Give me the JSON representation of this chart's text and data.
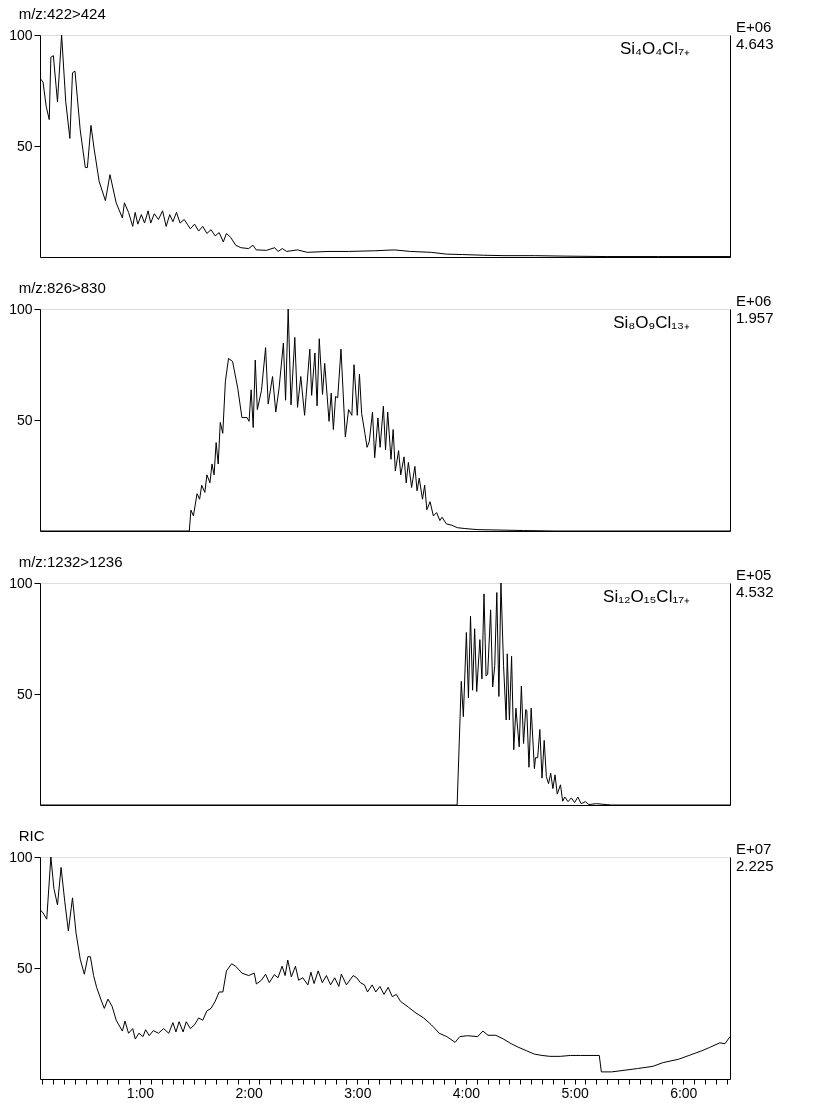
{
  "chart_data": [
    {
      "type": "line",
      "title": "m/z:422>424",
      "annotations": [
        "Si₄O₄Cl₇₊",
        "E+06",
        "4.643"
      ],
      "series": [
        {
          "color": "#000000",
          "x": [
            0.08,
            0.108,
            0.137,
            0.165,
            0.18,
            0.203,
            0.241,
            0.279,
            0.317,
            0.355,
            0.379,
            0.402,
            0.45,
            0.497,
            0.516,
            0.549,
            0.578,
            0.625,
            0.682,
            0.724,
            0.781,
            0.838,
            0.857,
            0.895,
            0.933,
            0.956,
            0.98,
            1.013,
            1.042,
            1.075,
            1.099,
            1.132,
            1.17,
            1.208,
            1.241,
            1.274,
            1.303,
            1.336,
            1.369,
            1.407,
            1.435,
            1.464,
            1.502,
            1.54,
            1.578,
            1.616,
            1.654,
            1.692,
            1.729,
            1.767,
            1.796,
            1.834,
            1.881,
            1.928,
            2.0,
            2.04,
            2.07,
            2.165,
            2.24,
            2.27,
            2.31,
            2.35,
            2.45,
            2.54,
            2.73,
            2.92,
            3.16,
            3.34,
            3.49,
            3.68,
            3.82,
            3.97,
            4.16,
            4.35,
            4.63,
            4.91,
            5.29,
            5.77,
            6.43
          ],
          "values": [
            80.5,
            78.8,
            67.8,
            61.9,
            90,
            90.7,
            69.9,
            100,
            69.9,
            53.4,
            83,
            83.7,
            57.2,
            40.3,
            40.3,
            59.3,
            48.7,
            33.9,
            25.4,
            37.1,
            24.4,
            17.6,
            24.4,
            20.1,
            13.8,
            20.1,
            14.8,
            19.1,
            15.3,
            20.8,
            15.3,
            19.5,
            16.9,
            20.8,
            13.8,
            19.1,
            15.9,
            20.1,
            15.3,
            16.9,
            14.8,
            12.7,
            14.8,
            11.7,
            13.8,
            10.6,
            12.3,
            9.5,
            11,
            6.8,
            10.6,
            8.9,
            5.3,
            4.2,
            3.8,
            5.3,
            3.2,
            3,
            4.2,
            2.5,
            3.8,
            2.5,
            3.2,
            2.1,
            2.5,
            2.5,
            2.8,
            3.2,
            2.5,
            2.1,
            1.3,
            1.1,
            0.8,
            0.6,
            0.6,
            0.4,
            0.2,
            0.2,
            0.2
          ]
        }
      ],
      "xlim": [
        0.08,
        6.43
      ],
      "ylim": [
        0,
        100
      ],
      "yticks": [
        50,
        100
      ],
      "tick_labels": "y"
    },
    {
      "type": "line",
      "title": "m/z:826>830",
      "annotations": [
        "Si₈O₉Cl₁₃₊",
        "E+06",
        "1.957"
      ],
      "series": [
        {
          "color": "#000000",
          "x": [
            0.08,
            1.454,
            1.469,
            1.492,
            1.525,
            1.549,
            1.568,
            1.597,
            1.616,
            1.644,
            1.663,
            1.682,
            1.701,
            1.72,
            1.739,
            1.762,
            1.786,
            1.815,
            1.852,
            1.9,
            1.938,
            1.985,
            2.004,
            2.023,
            2.042,
            2.061,
            2.08,
            2.118,
            2.156,
            2.18,
            2.22,
            2.25,
            2.28,
            2.32,
            2.34,
            2.364,
            2.39,
            2.425,
            2.45,
            2.48,
            2.515,
            2.563,
            2.58,
            2.61,
            2.63,
            2.65,
            2.68,
            2.7,
            2.74,
            2.76,
            2.78,
            2.8,
            2.82,
            2.85,
            2.89,
            2.92,
            2.95,
            2.97,
            3.0,
            3.02,
            3.04,
            3.07,
            3.09,
            3.11,
            3.14,
            3.16,
            3.19,
            3.21,
            3.24,
            3.26,
            3.28,
            3.31,
            3.33,
            3.35,
            3.38,
            3.4,
            3.43,
            3.45,
            3.47,
            3.5,
            3.53,
            3.55,
            3.57,
            3.6,
            3.62,
            3.64,
            3.67,
            3.7,
            3.73,
            3.76,
            3.78,
            3.82,
            3.87,
            3.92,
            3.99,
            4.11,
            4.35,
            4.53,
            4.82,
            6.43
          ],
          "values": [
            0,
            0,
            9.4,
            6.8,
            16.8,
            14.3,
            20.6,
            17.4,
            25.3,
            21.7,
            30.2,
            25.3,
            39.8,
            30.2,
            48.9,
            44,
            67.4,
            77.7,
            76.4,
            64.3,
            51.1,
            51.1,
            49.4,
            63.6,
            46.6,
            77,
            54.7,
            63.2,
            82.6,
            57.2,
            69.6,
            53.6,
            64.3,
            84.7,
            58.9,
            100,
            56.8,
            87.2,
            55.7,
            69.6,
            52.1,
            81.9,
            61.1,
            80.2,
            56.4,
            86.6,
            61.5,
            75.5,
            49.4,
            62.1,
            45.7,
            60.6,
            60,
            81.9,
            42.3,
            54.7,
            52.1,
            74.9,
            52.1,
            70.6,
            53,
            44,
            37.7,
            40.2,
            53.6,
            33,
            50.9,
            37.7,
            56.2,
            36.6,
            53.6,
            32.3,
            45.7,
            27,
            36.2,
            25.3,
            33.4,
            21.7,
            30.9,
            19.6,
            29.1,
            18.1,
            23.8,
            14.3,
            20.6,
            9.6,
            13.2,
            6.8,
            8.3,
            4.7,
            6.2,
            3.2,
            2.6,
            1.5,
            1.1,
            0.6,
            0.4,
            0.2,
            0,
            0
          ]
        }
      ],
      "xlim": [
        0.08,
        6.43
      ],
      "ylim": [
        0,
        100
      ],
      "yticks": [
        50,
        100
      ],
      "tick_labels": "y"
    },
    {
      "type": "line",
      "title": "m/z:1232>1236",
      "annotations": [
        "Si₁₂O₁₅Cl₁₇₊",
        "E+05",
        "4.532"
      ],
      "series": [
        {
          "color": "#000000",
          "x": [
            0.08,
            3.919,
            3.957,
            3.976,
            4.004,
            4.023,
            4.042,
            4.061,
            4.08,
            4.099,
            4.128,
            4.147,
            4.166,
            4.185,
            4.2,
            4.227,
            4.246,
            4.265,
            4.284,
            4.303,
            4.322,
            4.346,
            4.37,
            4.38,
            4.4,
            4.42,
            4.44,
            4.46,
            4.49,
            4.51,
            4.53,
            4.55,
            4.56,
            4.58,
            4.6,
            4.63,
            4.64,
            4.66,
            4.68,
            4.7,
            4.72,
            4.74,
            4.76,
            4.78,
            4.8,
            4.82,
            4.84,
            4.87,
            4.89,
            4.91,
            4.94,
            4.97,
            5.0,
            5.03,
            5.06,
            5.1,
            5.13,
            5.2,
            5.29,
            5.34,
            6.43
          ],
          "values": [
            0,
            0,
            55.7,
            39.8,
            77.7,
            48.3,
            85.1,
            51.7,
            79.4,
            51.1,
            74.5,
            56.8,
            95.1,
            58.1,
            58.9,
            87.9,
            53.2,
            62.8,
            95.7,
            48.9,
            100,
            62.8,
            38.3,
            68.1,
            38.3,
            67,
            24.9,
            43.6,
            26.2,
            53.6,
            27.7,
            43,
            42.6,
            17,
            43.6,
            16.4,
            21.3,
            21.3,
            34,
            12.1,
            29.1,
            12.8,
            9.6,
            14.3,
            7.4,
            13.6,
            4.9,
            9.1,
            1.7,
            3.6,
            1.5,
            3.2,
            1.1,
            3.6,
            0.6,
            1.5,
            0.2,
            0.6,
            0.2,
            0,
            0
          ]
        }
      ],
      "xlim": [
        0.08,
        6.43
      ],
      "ylim": [
        0,
        100
      ],
      "yticks": [
        50,
        100
      ],
      "tick_labels": "y"
    },
    {
      "type": "line",
      "title": "RIC",
      "annotations": [
        "E+07",
        "2.225"
      ],
      "series": [
        {
          "color": "#000000",
          "x": [
            0.08,
            0.108,
            0.142,
            0.18,
            0.208,
            0.241,
            0.274,
            0.308,
            0.341,
            0.379,
            0.412,
            0.45,
            0.488,
            0.521,
            0.544,
            0.573,
            0.601,
            0.639,
            0.672,
            0.705,
            0.743,
            0.781,
            0.838,
            0.862,
            0.895,
            0.933,
            0.957,
            0.99,
            1.028,
            1.052,
            1.085,
            1.123,
            1.17,
            1.217,
            1.265,
            1.303,
            1.331,
            1.36,
            1.397,
            1.426,
            1.464,
            1.502,
            1.54,
            1.578,
            1.616,
            1.654,
            1.692,
            1.729,
            1.763,
            1.796,
            1.843,
            1.881,
            1.938,
            2.0,
            2.052,
            2.071,
            2.118,
            2.156,
            2.19,
            2.237,
            2.27,
            2.308,
            2.336,
            2.36,
            2.393,
            2.431,
            2.46,
            2.498,
            2.545,
            2.573,
            2.602,
            2.64,
            2.678,
            2.716,
            2.754,
            2.792,
            2.83,
            2.853,
            2.9,
            2.962,
            2.995,
            3.028,
            3.066,
            3.094,
            3.137,
            3.17,
            3.208,
            3.246,
            3.284,
            3.322,
            3.359,
            3.397,
            3.469,
            3.54,
            3.611,
            3.682,
            3.754,
            3.824,
            3.9,
            3.943,
            4.013,
            4.108,
            4.156,
            4.203,
            4.274,
            4.345,
            4.416,
            4.487,
            4.559,
            4.63,
            4.701,
            4.772,
            4.867,
            4.962,
            5.056,
            5.151,
            5.227,
            5.246,
            5.34,
            5.436,
            5.578,
            5.72,
            5.815,
            5.957,
            6.052,
            6.17,
            6.242,
            6.336,
            6.384,
            6.43
          ],
          "values": [
            76.3,
            74.8,
            72,
            100,
            85.8,
            78.4,
            95.3,
            79.9,
            66.7,
            81.6,
            65.7,
            54,
            47.2,
            55.1,
            55.1,
            46.6,
            41.3,
            36,
            31.8,
            36,
            32.8,
            26.5,
            21.6,
            26.1,
            20.6,
            22.7,
            18,
            20.6,
            19.1,
            22.2,
            19.5,
            21.8,
            20.6,
            22.7,
            20.6,
            25.4,
            21.2,
            25.8,
            21.2,
            25.8,
            22.7,
            24.4,
            27.5,
            26.5,
            30.7,
            31.8,
            35,
            39.2,
            39.2,
            48.7,
            51.9,
            50.8,
            47.7,
            46.6,
            47.7,
            42.8,
            44.5,
            47.2,
            43.4,
            47,
            45.6,
            50.8,
            46.6,
            53.6,
            46,
            50.8,
            44.5,
            45.6,
            42.4,
            48.1,
            43,
            48.7,
            43.4,
            46.6,
            42.4,
            45.6,
            41.7,
            47.2,
            42.4,
            46.6,
            45.6,
            43.4,
            42.4,
            39.2,
            42.4,
            39.2,
            41.7,
            38.1,
            41.3,
            37.1,
            38.1,
            35,
            32.4,
            29.7,
            27.5,
            24.4,
            20.6,
            19.1,
            16.5,
            19.1,
            19.5,
            19.1,
            21.6,
            19.7,
            19.7,
            18,
            15.9,
            14.2,
            12.7,
            11.2,
            10.6,
            10.2,
            10.2,
            10.6,
            10.6,
            10.6,
            10.6,
            3.2,
            3.2,
            3.8,
            4.7,
            5.7,
            7.4,
            8.9,
            10.6,
            12.7,
            14.2,
            16.3,
            15.9,
            19.1
          ]
        }
      ],
      "xlim": [
        0.08,
        6.43
      ],
      "ylim": [
        0,
        100
      ],
      "yticks": [
        50,
        100
      ],
      "xticks": [
        {
          "value": 0.1,
          "label": null
        },
        {
          "value": 0.2,
          "label": null
        },
        {
          "value": 0.3,
          "label": null
        },
        {
          "value": 0.4,
          "label": null
        },
        {
          "value": 0.5,
          "label": null
        },
        {
          "value": 0.6,
          "label": null
        },
        {
          "value": 0.7,
          "label": null
        },
        {
          "value": 0.8,
          "label": null
        },
        {
          "value": 0.9,
          "label": null
        },
        {
          "value": 1,
          "label": "1:00"
        },
        {
          "value": 1.1,
          "label": null
        },
        {
          "value": 1.2,
          "label": null
        },
        {
          "value": 1.3,
          "label": null
        },
        {
          "value": 1.4,
          "label": null
        },
        {
          "value": 1.5,
          "label": null
        },
        {
          "value": 1.6,
          "label": null
        },
        {
          "value": 1.7,
          "label": null
        },
        {
          "value": 1.8,
          "label": null
        },
        {
          "value": 1.9,
          "label": null
        },
        {
          "value": 2,
          "label": "2:00"
        },
        {
          "value": 2.1,
          "label": null
        },
        {
          "value": 2.2,
          "label": null
        },
        {
          "value": 2.3,
          "label": null
        },
        {
          "value": 2.4,
          "label": null
        },
        {
          "value": 2.5,
          "label": null
        },
        {
          "value": 2.6,
          "label": null
        },
        {
          "value": 2.7,
          "label": null
        },
        {
          "value": 2.8,
          "label": null
        },
        {
          "value": 2.9,
          "label": null
        },
        {
          "value": 3,
          "label": "3:00"
        },
        {
          "value": 3.1,
          "label": null
        },
        {
          "value": 3.2,
          "label": null
        },
        {
          "value": 3.3,
          "label": null
        },
        {
          "value": 3.4,
          "label": null
        },
        {
          "value": 3.5,
          "label": null
        },
        {
          "value": 3.6,
          "label": null
        },
        {
          "value": 3.7,
          "label": null
        },
        {
          "value": 3.8,
          "label": null
        },
        {
          "value": 3.9,
          "label": null
        },
        {
          "value": 4,
          "label": "4:00"
        },
        {
          "value": 4.1,
          "label": null
        },
        {
          "value": 4.2,
          "label": null
        },
        {
          "value": 4.3,
          "label": null
        },
        {
          "value": 4.4,
          "label": null
        },
        {
          "value": 4.5,
          "label": null
        },
        {
          "value": 4.6,
          "label": null
        },
        {
          "value": 4.7,
          "label": null
        },
        {
          "value": 4.8,
          "label": null
        },
        {
          "value": 4.9,
          "label": null
        },
        {
          "value": 5,
          "label": "5:00"
        },
        {
          "value": 5.1,
          "label": null
        },
        {
          "value": 5.2,
          "label": null
        },
        {
          "value": 5.3,
          "label": null
        },
        {
          "value": 5.4,
          "label": null
        },
        {
          "value": 5.5,
          "label": null
        },
        {
          "value": 5.6,
          "label": null
        },
        {
          "value": 5.7,
          "label": null
        },
        {
          "value": 5.8,
          "label": null
        },
        {
          "value": 5.9,
          "label": null
        },
        {
          "value": 6,
          "label": "6:00"
        },
        {
          "value": 6.1,
          "label": null
        },
        {
          "value": 6.2,
          "label": null
        },
        {
          "value": 6.3,
          "label": null
        },
        {
          "value": 6.4,
          "label": null
        }
      ]
    }
  ]
}
